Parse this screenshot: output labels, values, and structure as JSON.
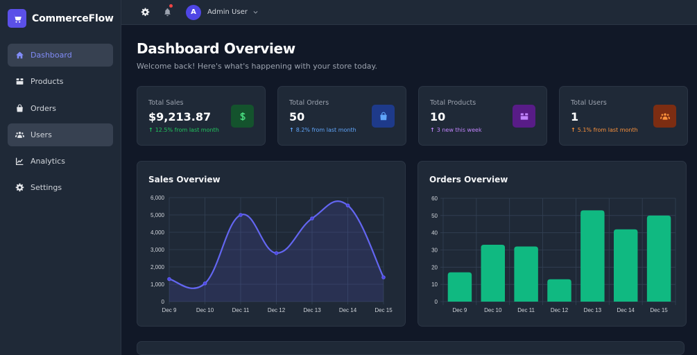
{
  "brand": {
    "name": "CommerceFlow",
    "icon": "shopping-cart-icon",
    "color": "#5b50e8"
  },
  "sidebar": {
    "items": [
      {
        "label": "Dashboard",
        "icon": "home-icon",
        "active": true
      },
      {
        "label": "Products",
        "icon": "box-icon",
        "active": false
      },
      {
        "label": "Orders",
        "icon": "shopping-bag-icon",
        "active": false
      },
      {
        "label": "Users",
        "icon": "users-icon",
        "active": false,
        "hovered": true
      },
      {
        "label": "Analytics",
        "icon": "chart-line-icon",
        "active": false
      },
      {
        "label": "Settings",
        "icon": "gear-icon",
        "active": false
      }
    ]
  },
  "topbar": {
    "settings_icon": "gear-icon",
    "notifications_icon": "bell-icon",
    "has_notification": true,
    "user": {
      "initial": "A",
      "name": "Admin User"
    }
  },
  "page": {
    "title": "Dashboard Overview",
    "subtitle": "Welcome back! Here's what's happening with your store today."
  },
  "stats": [
    {
      "label": "Total Sales",
      "value": "$9,213.87",
      "change": "12.5% from last month",
      "color": "#22c55e",
      "icon": "dollar-icon",
      "icon_bg": "#14532d",
      "icon_color": "#4ade80"
    },
    {
      "label": "Total Orders",
      "value": "50",
      "change": "8.2% from last month",
      "color": "#60a5fa",
      "icon": "shopping-bag-icon",
      "icon_bg": "#1e3a8a",
      "icon_color": "#60a5fa"
    },
    {
      "label": "Total Products",
      "value": "10",
      "change": "3 new this week",
      "color": "#c084fc",
      "icon": "box-icon",
      "icon_bg": "#581c87",
      "icon_color": "#c084fc"
    },
    {
      "label": "Total Users",
      "value": "1",
      "change": "5.1% from last month",
      "color": "#fb923c",
      "icon": "users-icon",
      "icon_bg": "#7c2d12",
      "icon_color": "#fb923c"
    }
  ],
  "chart_data": [
    {
      "type": "line",
      "title": "Sales Overview",
      "categories": [
        "Dec 9",
        "Dec 10",
        "Dec 11",
        "Dec 12",
        "Dec 13",
        "Dec 14",
        "Dec 15"
      ],
      "series": [
        {
          "name": "Sales",
          "values": [
            1300,
            1050,
            5000,
            2800,
            4800,
            5550,
            1400
          ],
          "color": "#6366f1"
        }
      ],
      "yticks": [
        "0",
        "1,000",
        "2,000",
        "3,000",
        "4,000",
        "5,000",
        "6,000"
      ],
      "ylim": [
        0,
        6000
      ],
      "grid": true,
      "fill": true
    },
    {
      "type": "bar",
      "title": "Orders Overview",
      "categories": [
        "Dec 9",
        "Dec 10",
        "Dec 11",
        "Dec 12",
        "Dec 13",
        "Dec 14",
        "Dec 15"
      ],
      "series": [
        {
          "name": "Orders",
          "values": [
            17,
            33,
            32,
            13,
            53,
            42,
            50
          ],
          "color": "#10b981"
        }
      ],
      "yticks": [
        "0",
        "10",
        "20",
        "30",
        "40",
        "50",
        "60"
      ],
      "ylim": [
        0,
        60
      ],
      "grid": true
    }
  ]
}
